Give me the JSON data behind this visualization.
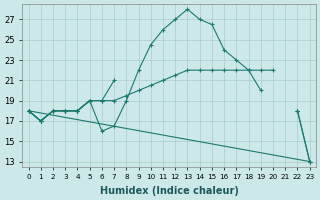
{
  "background_color": "#cde8e8",
  "grid_color": "#aacccc",
  "line_color": "#1a7a6e",
  "xlabel": "Humidex (Indice chaleur)",
  "xlim": [
    -0.5,
    23.5
  ],
  "ylim": [
    12.5,
    28.5
  ],
  "yticks": [
    13,
    15,
    17,
    19,
    21,
    23,
    25,
    27
  ],
  "xticks": [
    0,
    1,
    2,
    3,
    4,
    5,
    6,
    7,
    8,
    9,
    10,
    11,
    12,
    13,
    14,
    15,
    16,
    17,
    18,
    19,
    20,
    21,
    22,
    23
  ],
  "lines": [
    {
      "y": [
        18,
        17,
        18,
        18,
        18,
        19,
        null,
        null,
        null,
        null,
        null,
        null,
        null,
        null,
        null,
        null,
        null,
        null,
        null,
        null,
        null,
        null,
        18,
        13
      ],
      "dashed": false
    },
    {
      "y": [
        18,
        17,
        18,
        18,
        18,
        19,
        19,
        19,
        19.5,
        20,
        20.5,
        21,
        21.5,
        22,
        22,
        22,
        22,
        22,
        22,
        22,
        22,
        null,
        null,
        null
      ],
      "dashed": false
    },
    {
      "y": [
        18,
        17,
        18,
        18,
        18,
        19,
        19,
        21,
        null,
        null,
        null,
        null,
        null,
        null,
        null,
        null,
        null,
        null,
        22,
        null,
        null,
        null,
        18,
        null
      ],
      "dashed": false
    },
    {
      "y": [
        18,
        17,
        18,
        18,
        18,
        19,
        16,
        16.5,
        19,
        22,
        24.5,
        26,
        27,
        28,
        27,
        26.5,
        24,
        23,
        22,
        20,
        null,
        null,
        18,
        13
      ],
      "dashed": false
    }
  ]
}
